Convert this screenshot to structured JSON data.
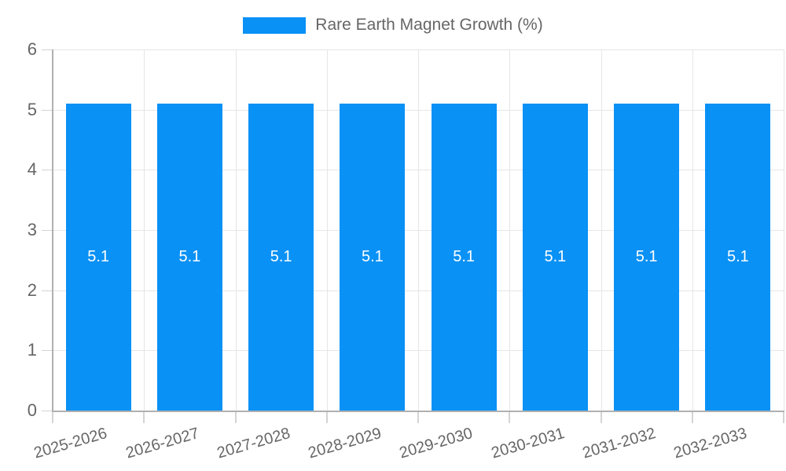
{
  "legend": {
    "label": "Rare Earth Magnet Growth (%)"
  },
  "colors": {
    "bar": "#0991f5",
    "grid": "#e6e6e6",
    "axis": "#b0b0b0",
    "tick": "#d4d4d4",
    "tick_label": "#666666",
    "bar_label": "#ffffff",
    "background": "#ffffff"
  },
  "chart_data": {
    "type": "bar",
    "title": "Rare Earth Magnet Growth (%)",
    "categories": [
      "2025-2026",
      "2026-2027",
      "2027-2028",
      "2028-2029",
      "2029-2030",
      "2030-2031",
      "2031-2032",
      "2032-2033"
    ],
    "series": [
      {
        "name": "Rare Earth Magnet Growth (%)",
        "values": [
          5.1,
          5.1,
          5.1,
          5.1,
          5.1,
          5.1,
          5.1,
          5.1
        ],
        "color": "#0991f5"
      }
    ],
    "data_labels": [
      "5.1",
      "5.1",
      "5.1",
      "5.1",
      "5.1",
      "5.1",
      "5.1",
      "5.1"
    ],
    "xlabel": "",
    "ylabel": "",
    "ylim": [
      0,
      6
    ],
    "y_ticks": [
      0,
      1,
      2,
      3,
      4,
      5,
      6
    ],
    "grid": true,
    "legend_position": "top",
    "x_tick_rotation_deg": -16
  }
}
